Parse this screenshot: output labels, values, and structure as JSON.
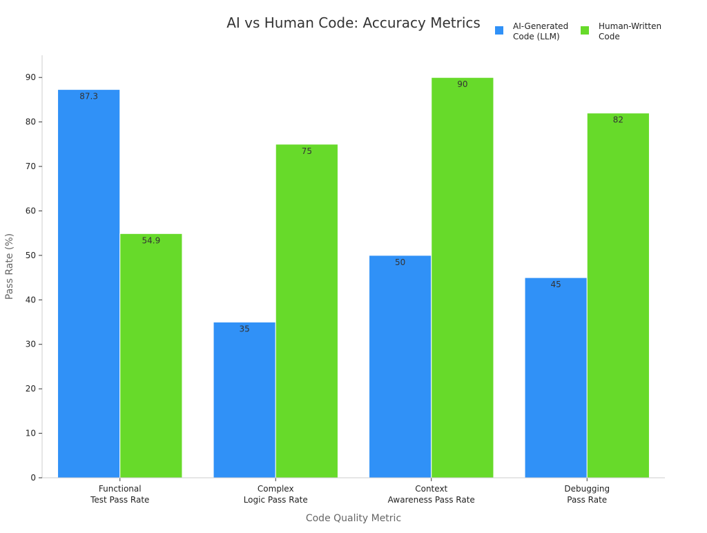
{
  "chart_data": {
    "type": "bar",
    "title": "AI vs Human Code: Accuracy Metrics",
    "xlabel": "Code Quality Metric",
    "ylabel": "Pass Rate (%)",
    "categories": [
      [
        "Functional",
        "Test Pass Rate"
      ],
      [
        "Complex",
        "Logic Pass Rate"
      ],
      [
        "Context",
        "Awareness Pass Rate"
      ],
      [
        "Debugging",
        "Pass Rate"
      ]
    ],
    "series": [
      {
        "name": [
          "AI-Generated",
          "Code (LLM)"
        ],
        "color": "#3091f7",
        "values": [
          87.3,
          35,
          50,
          45
        ]
      },
      {
        "name": [
          "Human-Written",
          "Code"
        ],
        "color": "#67da2a",
        "values": [
          54.9,
          75,
          90,
          82
        ]
      }
    ],
    "ylim": [
      0,
      95
    ],
    "yticks": [
      0,
      10,
      20,
      30,
      40,
      50,
      60,
      70,
      80,
      90
    ],
    "grid": false,
    "legend_position": "top-right",
    "data_labels": true
  }
}
